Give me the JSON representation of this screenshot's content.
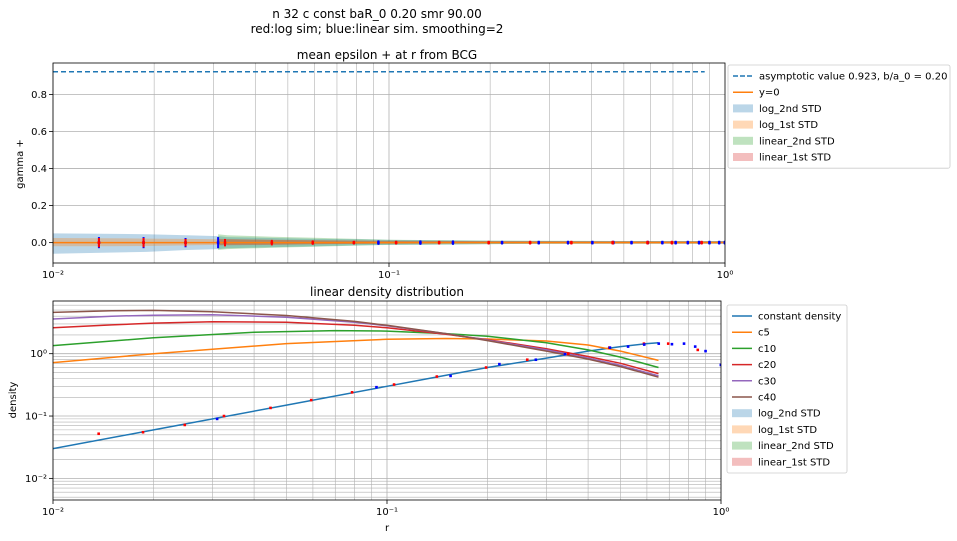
{
  "header": {
    "line1": "n 32 c const baR_0 0.20 smr 90.00",
    "line2": "red:log sim; blue:linear sim. smoothing=2"
  },
  "colors": {
    "blue": "#1f77b4",
    "orange": "#ff7f0e",
    "green": "#2ca02c",
    "red": "#d62728",
    "purple": "#9467bd",
    "brown": "#8c564b",
    "marker_red": "#ff0000",
    "marker_blue": "#0000ff"
  },
  "chart_data": [
    {
      "type": "line",
      "title": "mean epsilon + at r from BCG",
      "xlabel": "",
      "ylabel": "gamma +",
      "xscale": "log",
      "xlim": [
        0.01,
        1.0
      ],
      "ylim": [
        -0.11,
        0.97
      ],
      "x_ticks": [
        {
          "v": 0.01,
          "label": "10⁻²"
        },
        {
          "v": 0.1,
          "label": "10⁻¹"
        },
        {
          "v": 1.0,
          "label": "10⁰"
        }
      ],
      "y_ticks": [
        {
          "v": 0.0,
          "label": "0.0"
        },
        {
          "v": 0.2,
          "label": "0.2"
        },
        {
          "v": 0.4,
          "label": "0.4"
        },
        {
          "v": 0.6,
          "label": "0.6"
        },
        {
          "v": 0.8,
          "label": "0.8"
        }
      ],
      "grid": true,
      "legend_position": "outside-right",
      "legend": [
        {
          "label": "asymptotic value 0.923, b/a_0 = 0.20",
          "kind": "dashed",
          "color": "#1f77b4"
        },
        {
          "label": "y=0",
          "kind": "line",
          "color": "#ff7f0e"
        },
        {
          "label": "log_2nd STD",
          "kind": "patch",
          "color": "#1f77b4"
        },
        {
          "label": "log_1st STD",
          "kind": "patch",
          "color": "#ff7f0e"
        },
        {
          "label": "linear_2nd STD",
          "kind": "patch",
          "color": "#2ca02c"
        },
        {
          "label": "linear_1st STD",
          "kind": "patch",
          "color": "#d62728"
        }
      ],
      "asymptote": {
        "value": 0.923,
        "x_range": [
          0.01,
          0.87
        ]
      },
      "bands": [
        {
          "name": "log_2nd STD",
          "color": "#1f77b4",
          "x": [
            0.01,
            0.014,
            0.019,
            0.025,
            0.031,
            0.033,
            0.045,
            0.06,
            0.08,
            0.1,
            0.15,
            0.2,
            0.3,
            0.5,
            0.7,
            1.0
          ],
          "lower": [
            -0.06,
            -0.055,
            -0.05,
            -0.04,
            -0.035,
            -0.03,
            -0.025,
            -0.02,
            -0.015,
            -0.012,
            -0.01,
            -0.008,
            -0.006,
            -0.006,
            -0.006,
            -0.006
          ],
          "upper": [
            0.05,
            0.048,
            0.045,
            0.04,
            0.035,
            0.03,
            0.025,
            0.02,
            0.018,
            0.015,
            0.012,
            0.01,
            0.009,
            0.008,
            0.008,
            0.008
          ]
        },
        {
          "name": "log_1st STD",
          "color": "#ff7f0e",
          "x": [
            0.01,
            0.014,
            0.019,
            0.025,
            0.031,
            0.045,
            0.06,
            0.1,
            0.2,
            0.5,
            1.0
          ],
          "lower": [
            -0.02,
            -0.02,
            -0.018,
            -0.015,
            -0.012,
            -0.01,
            -0.008,
            -0.005,
            -0.003,
            -0.002,
            -0.002
          ],
          "upper": [
            0.025,
            0.024,
            0.022,
            0.02,
            0.018,
            0.014,
            0.012,
            0.009,
            0.007,
            0.006,
            0.006
          ]
        },
        {
          "name": "linear_2nd STD",
          "color": "#2ca02c",
          "x": [
            0.031,
            0.033,
            0.045,
            0.06,
            0.08,
            0.1,
            0.15,
            0.2,
            0.3,
            0.5,
            0.7,
            1.0
          ],
          "lower": [
            -0.04,
            -0.035,
            -0.028,
            -0.022,
            -0.016,
            -0.012,
            -0.01,
            -0.008,
            -0.007,
            -0.006,
            -0.006,
            -0.006
          ],
          "upper": [
            0.045,
            0.04,
            0.032,
            0.026,
            0.02,
            0.016,
            0.013,
            0.011,
            0.01,
            0.009,
            0.009,
            0.009
          ]
        },
        {
          "name": "linear_1st STD",
          "color": "#d62728",
          "x": [
            0.031,
            0.045,
            0.06,
            0.1,
            0.2,
            0.5,
            1.0
          ],
          "lower": [
            -0.015,
            -0.012,
            -0.009,
            -0.006,
            -0.004,
            -0.003,
            -0.003
          ],
          "upper": [
            0.02,
            0.016,
            0.013,
            0.01,
            0.008,
            0.007,
            0.007
          ]
        }
      ],
      "y0_line": {
        "value": 0.0,
        "x_range": [
          0.01,
          1.0
        ]
      },
      "markers_red": {
        "x": [
          0.0137,
          0.0186,
          0.0248,
          0.0325,
          0.0448,
          0.0593,
          0.0786,
          0.105,
          0.141,
          0.198,
          0.263,
          0.349,
          0.463,
          0.588,
          0.695,
          0.852
        ],
        "y": [
          0.0,
          0.0,
          0.0,
          0.0,
          0.0,
          0.0,
          0.0,
          0.0,
          0.0,
          0.0,
          0.0,
          0.0,
          0.0,
          0.0,
          0.0,
          0.0
        ],
        "err": [
          0.025,
          0.025,
          0.02,
          0.02,
          0.015,
          0.012,
          0.01,
          0.01,
          0.01,
          0.01,
          0.01,
          0.01,
          0.01,
          0.01,
          0.01,
          0.01
        ]
      },
      "markers_blue": {
        "x": [
          0.0137,
          0.0186,
          0.0248,
          0.031,
          0.093,
          0.124,
          0.155,
          0.217,
          0.279,
          0.341,
          0.403,
          0.465,
          0.527,
          0.589,
          0.651,
          0.713,
          0.775,
          0.837,
          0.899,
          0.961,
          0.999
        ],
        "y": [
          0.0,
          0.0,
          0.0,
          0.0,
          0.0,
          0.0,
          0.0,
          0.0,
          0.0,
          0.0,
          0.0,
          0.0,
          0.0,
          0.0,
          0.0,
          0.0,
          0.0,
          0.0,
          0.0,
          0.0,
          0.0
        ],
        "err": [
          0.03,
          0.03,
          0.025,
          0.03,
          0.012,
          0.012,
          0.012,
          0.01,
          0.01,
          0.01,
          0.01,
          0.01,
          0.01,
          0.01,
          0.01,
          0.01,
          0.01,
          0.01,
          0.01,
          0.01,
          0.01
        ]
      }
    },
    {
      "type": "line",
      "title": "linear density distribution",
      "xlabel": "r",
      "ylabel": "density",
      "xscale": "log",
      "yscale": "log",
      "xlim": [
        0.01,
        1.0
      ],
      "ylim": [
        0.0045,
        7.0
      ],
      "x_ticks": [
        {
          "v": 0.01,
          "label": "10⁻²"
        },
        {
          "v": 0.1,
          "label": "10⁻¹"
        },
        {
          "v": 1.0,
          "label": "10⁰"
        }
      ],
      "y_ticks": [
        {
          "v": 0.01,
          "label": "10⁻²"
        },
        {
          "v": 0.1,
          "label": "10⁻¹"
        },
        {
          "v": 1.0,
          "label": "10⁰"
        }
      ],
      "grid": true,
      "legend_position": "outside-right",
      "legend": [
        {
          "label": "constant density",
          "kind": "line",
          "color": "#1f77b4"
        },
        {
          "label": "c5",
          "kind": "line",
          "color": "#ff7f0e"
        },
        {
          "label": "c10",
          "kind": "line",
          "color": "#2ca02c"
        },
        {
          "label": "c20",
          "kind": "line",
          "color": "#d62728"
        },
        {
          "label": "c30",
          "kind": "line",
          "color": "#9467bd"
        },
        {
          "label": "c40",
          "kind": "line",
          "color": "#8c564b"
        },
        {
          "label": "log_2nd STD",
          "kind": "patch",
          "color": "#1f77b4"
        },
        {
          "label": "log_1st STD",
          "kind": "patch",
          "color": "#ff7f0e"
        },
        {
          "label": "linear_2nd STD",
          "kind": "patch",
          "color": "#2ca02c"
        },
        {
          "label": "linear_1st STD",
          "kind": "patch",
          "color": "#d62728"
        }
      ],
      "series": [
        {
          "name": "constant density",
          "color": "#1f77b4",
          "x": [
            0.01,
            0.02,
            0.05,
            0.1,
            0.2,
            0.3,
            0.4,
            0.5,
            0.6,
            0.65
          ],
          "y": [
            0.03,
            0.06,
            0.15,
            0.3,
            0.6,
            0.85,
            1.1,
            1.3,
            1.45,
            1.5
          ]
        },
        {
          "name": "c5",
          "color": "#ff7f0e",
          "x": [
            0.01,
            0.02,
            0.05,
            0.1,
            0.15,
            0.2,
            0.3,
            0.4,
            0.5,
            0.65
          ],
          "y": [
            0.72,
            1.0,
            1.45,
            1.7,
            1.75,
            1.72,
            1.6,
            1.38,
            1.1,
            0.78
          ]
        },
        {
          "name": "c10",
          "color": "#2ca02c",
          "x": [
            0.01,
            0.02,
            0.04,
            0.07,
            0.1,
            0.15,
            0.2,
            0.3,
            0.4,
            0.5,
            0.65
          ],
          "y": [
            1.35,
            1.8,
            2.2,
            2.35,
            2.3,
            2.1,
            1.9,
            1.5,
            1.15,
            0.88,
            0.6
          ]
        },
        {
          "name": "c20",
          "color": "#d62728",
          "x": [
            0.01,
            0.015,
            0.02,
            0.03,
            0.05,
            0.08,
            0.1,
            0.15,
            0.2,
            0.3,
            0.4,
            0.5,
            0.65
          ],
          "y": [
            2.6,
            2.9,
            3.1,
            3.25,
            3.2,
            2.85,
            2.6,
            2.05,
            1.68,
            1.2,
            0.9,
            0.7,
            0.48
          ]
        },
        {
          "name": "c30",
          "color": "#9467bd",
          "x": [
            0.01,
            0.015,
            0.02,
            0.03,
            0.05,
            0.08,
            0.1,
            0.15,
            0.2,
            0.3,
            0.4,
            0.5,
            0.65
          ],
          "y": [
            3.6,
            4.0,
            4.15,
            4.2,
            3.85,
            3.2,
            2.8,
            2.1,
            1.65,
            1.15,
            0.85,
            0.65,
            0.44
          ]
        },
        {
          "name": "c40",
          "color": "#8c564b",
          "x": [
            0.01,
            0.015,
            0.02,
            0.03,
            0.05,
            0.08,
            0.1,
            0.15,
            0.2,
            0.3,
            0.4,
            0.5,
            0.65
          ],
          "y": [
            4.6,
            4.9,
            4.95,
            4.7,
            4.1,
            3.3,
            2.85,
            2.1,
            1.62,
            1.1,
            0.82,
            0.62,
            0.42
          ]
        }
      ],
      "markers_red": {
        "x": [
          0.0137,
          0.0186,
          0.0248,
          0.0325,
          0.0448,
          0.0593,
          0.0786,
          0.105,
          0.141,
          0.198,
          0.263,
          0.349,
          0.463,
          0.588,
          0.695,
          0.852
        ],
        "y": [
          0.052,
          0.055,
          0.072,
          0.1,
          0.135,
          0.18,
          0.24,
          0.32,
          0.43,
          0.6,
          0.8,
          1.0,
          1.25,
          1.45,
          1.45,
          1.15
        ]
      },
      "markers_blue": {
        "x": [
          0.031,
          0.093,
          0.155,
          0.217,
          0.279,
          0.341,
          0.465,
          0.527,
          0.589,
          0.651,
          0.713,
          0.775,
          0.837,
          0.899,
          0.999
        ],
        "y": [
          0.09,
          0.29,
          0.44,
          0.68,
          0.8,
          0.98,
          1.25,
          1.3,
          1.4,
          1.45,
          1.42,
          1.45,
          1.3,
          1.1,
          0.66
        ]
      }
    }
  ]
}
